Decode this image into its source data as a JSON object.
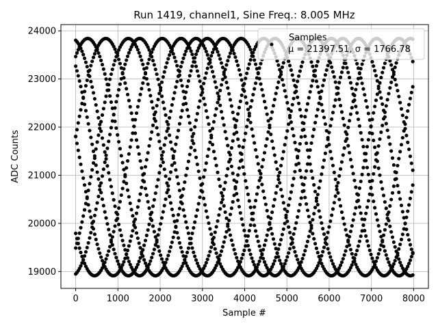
{
  "chart_data": {
    "type": "scatter",
    "title": "Run 1419, channel1, Sine Freq.: 8.005 MHz",
    "xlabel": "Sample #",
    "ylabel": "ADC Counts",
    "xlim": [
      -350,
      8350
    ],
    "ylim": [
      18650,
      24130
    ],
    "xticks": [
      0,
      1000,
      2000,
      3000,
      4000,
      5000,
      6000,
      7000,
      8000
    ],
    "yticks": [
      19000,
      20000,
      21000,
      22000,
      23000,
      24000
    ],
    "grid": true,
    "legend": {
      "placement": "top-right",
      "series_name": "Samples",
      "stats": "μ = 21397.51, σ = 1766.78"
    },
    "series": [
      {
        "name": "Samples",
        "color": "#000000",
        "model": {
          "mean": 21377,
          "amplitude": 2465,
          "period_samples": 3205,
          "x_start": 0,
          "x_end": 8000,
          "phases_deg": [
            -50,
            10,
            58,
            100,
            130,
            170,
            220,
            280
          ]
        }
      }
    ]
  }
}
